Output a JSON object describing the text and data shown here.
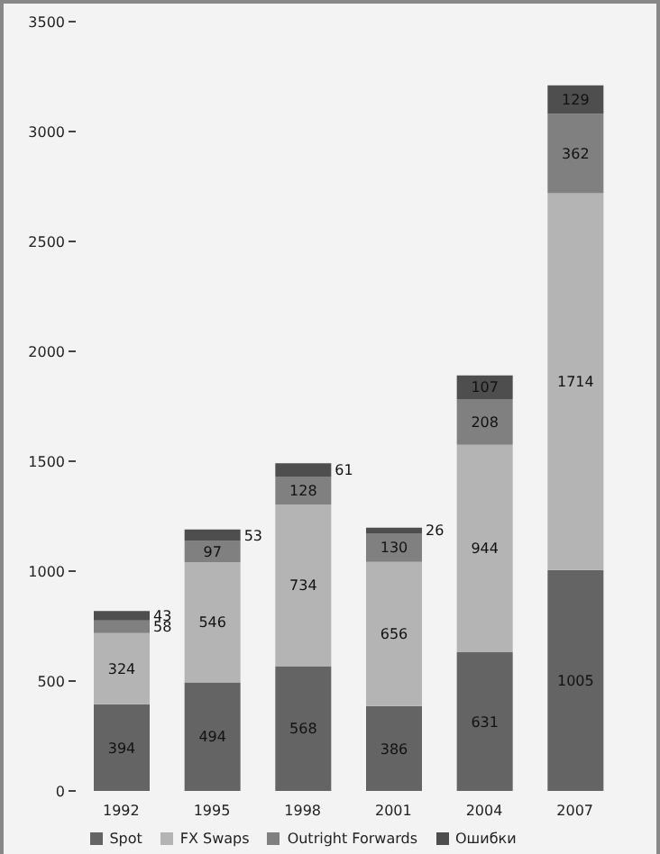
{
  "chart_data": {
    "type": "bar",
    "stacked": true,
    "categories": [
      "1992",
      "1995",
      "1998",
      "2001",
      "2004",
      "2007"
    ],
    "series": [
      {
        "name": "Spot",
        "color": "#646464",
        "values": [
          394,
          494,
          568,
          386,
          631,
          1005
        ]
      },
      {
        "name": "FX Swaps",
        "color": "#b4b4b4",
        "values": [
          324,
          546,
          734,
          656,
          944,
          1714
        ]
      },
      {
        "name": "Outright Forwards",
        "color": "#808080",
        "values": [
          58,
          97,
          128,
          130,
          208,
          362
        ]
      },
      {
        "name": "Ошибки",
        "color": "#4e4e4e",
        "values": [
          43,
          53,
          61,
          26,
          107,
          129
        ]
      }
    ],
    "ylim": [
      0,
      3500
    ],
    "yticks": [
      0,
      500,
      1000,
      1500,
      2000,
      2500,
      3000,
      3500
    ],
    "data_labels": true,
    "legend": "bottom",
    "grid": false
  }
}
